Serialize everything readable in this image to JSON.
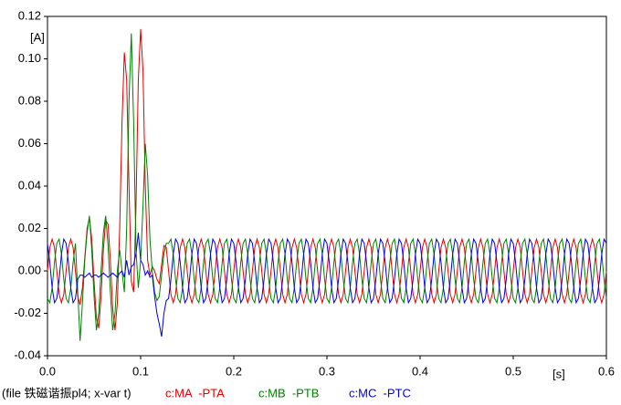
{
  "chart_data": {
    "type": "line",
    "y_unit_label": "[A]",
    "x_unit_label": "[s]",
    "file_label": "(file 铁磁谐振pl4; x-var t)",
    "xlim": [
      0,
      0.6
    ],
    "ylim": [
      -0.04,
      0.12
    ],
    "xticks": [
      {
        "value": 0,
        "label": "0.0"
      },
      {
        "value": 0.1,
        "label": "0.1"
      },
      {
        "value": 0.2,
        "label": "0.2"
      },
      {
        "value": 0.3,
        "label": "0.3"
      },
      {
        "value": 0.4,
        "label": "0.4"
      },
      {
        "value": 0.5,
        "label": "0.5"
      },
      {
        "value": 0.6,
        "label": "0.6"
      }
    ],
    "yticks": [
      {
        "value": -0.04,
        "label": "-0.04"
      },
      {
        "value": -0.02,
        "label": "-0.02"
      },
      {
        "value": 0,
        "label": "0.00"
      },
      {
        "value": 0.02,
        "label": "0.02"
      },
      {
        "value": 0.04,
        "label": "0.04"
      },
      {
        "value": 0.06,
        "label": "0.06"
      },
      {
        "value": 0.08,
        "label": "0.08"
      },
      {
        "value": 0.1,
        "label": "0.10"
      },
      {
        "value": 0.12,
        "label": "0.12"
      }
    ],
    "x": [
      0,
      0.0025,
      0.005,
      0.0075,
      0.01,
      0.0125,
      0.015,
      0.0175,
      0.02,
      0.0225,
      0.025,
      0.0275,
      0.03,
      0.0325,
      0.035,
      0.0375,
      0.04,
      0.0425,
      0.045,
      0.0475,
      0.05,
      0.0525,
      0.055,
      0.0575,
      0.06,
      0.0625,
      0.065,
      0.0675,
      0.07,
      0.0725,
      0.075,
      0.0775,
      0.08,
      0.0825,
      0.085,
      0.0875,
      0.09,
      0.0925,
      0.095,
      0.0975,
      0.1,
      0.1025,
      0.105,
      0.1075,
      0.11,
      0.1125,
      0.115,
      0.1175,
      0.12,
      0.1225,
      0.125,
      0.1275,
      0.13,
      0.1325,
      0.135,
      0.1375,
      0.14,
      0.1425,
      0.145,
      0.1475,
      0.15,
      0.1525,
      0.155,
      0.1575,
      0.16,
      0.1625,
      0.165,
      0.1675,
      0.17,
      0.1725,
      0.175,
      0.1775,
      0.18,
      0.1825,
      0.185,
      0.1875,
      0.19,
      0.1925,
      0.195,
      0.1975,
      0.2,
      0.2025,
      0.205,
      0.2075,
      0.21,
      0.2125,
      0.215,
      0.2175,
      0.22,
      0.2225,
      0.225,
      0.2275,
      0.23,
      0.2325,
      0.235,
      0.2375,
      0.24,
      0.2425,
      0.245,
      0.2475,
      0.25,
      0.2525,
      0.255,
      0.2575,
      0.26,
      0.2625,
      0.265,
      0.2675,
      0.27,
      0.2725,
      0.275,
      0.2775,
      0.28,
      0.2825,
      0.285,
      0.2875,
      0.29,
      0.2925,
      0.295,
      0.2975,
      0.3,
      0.3025,
      0.305,
      0.3075,
      0.31,
      0.3125,
      0.315,
      0.3175,
      0.32,
      0.3225,
      0.325,
      0.3275,
      0.33,
      0.3325,
      0.335,
      0.3375,
      0.34,
      0.3425,
      0.345,
      0.3475,
      0.35,
      0.3525,
      0.355,
      0.3575,
      0.36,
      0.3625,
      0.365,
      0.3675,
      0.37,
      0.3725,
      0.375,
      0.3775,
      0.38,
      0.3825,
      0.385,
      0.3875,
      0.39,
      0.3925,
      0.395,
      0.3975,
      0.4,
      0.4025,
      0.405,
      0.4075,
      0.41,
      0.4125,
      0.415,
      0.4175,
      0.42,
      0.4225,
      0.425,
      0.4275,
      0.43,
      0.4325,
      0.435,
      0.4375,
      0.44,
      0.4425,
      0.445,
      0.4475,
      0.45,
      0.4525,
      0.455,
      0.4575,
      0.46,
      0.4625,
      0.465,
      0.4675,
      0.47,
      0.4725,
      0.475,
      0.4775,
      0.48,
      0.4825,
      0.485,
      0.4875,
      0.49,
      0.4925,
      0.495,
      0.4975,
      0.5,
      0.5025,
      0.505,
      0.5075,
      0.51,
      0.5125,
      0.515,
      0.5175,
      0.52,
      0.5225,
      0.525,
      0.5275,
      0.53,
      0.5325,
      0.535,
      0.5375,
      0.54,
      0.5425,
      0.545,
      0.5475,
      0.55,
      0.5525,
      0.555,
      0.5575,
      0.56,
      0.5625,
      0.565,
      0.5675,
      0.57,
      0.5725,
      0.575,
      0.5775,
      0.58,
      0.5825,
      0.585,
      0.5875,
      0.59,
      0.5925,
      0.595,
      0.5975,
      0.6
    ],
    "series": [
      {
        "name": "c:MA  -PTA",
        "color": "#e00000",
        "values": [
          0,
          0.011,
          0.015,
          0.011,
          0,
          -0.011,
          -0.015,
          -0.011,
          0,
          0.011,
          0.015,
          0.011,
          0,
          -0.012,
          -0.016,
          -0.008,
          0.006,
          0.02,
          0.025,
          0.015,
          -0.005,
          -0.022,
          -0.027,
          -0.012,
          0.01,
          0.024,
          0.022,
          0.005,
          -0.018,
          -0.028,
          -0.015,
          0.02,
          0.07,
          0.103,
          0.09,
          0.04,
          -0.005,
          -0.01,
          0.03,
          0.09,
          0.114,
          0.095,
          0.04,
          0.005,
          -0.002,
          0.002,
          0,
          -0.004,
          -0.006,
          0.003,
          0.012,
          0.011,
          0,
          -0.011,
          -0.015,
          -0.011,
          0,
          0.011,
          0.015,
          0.011,
          0,
          -0.011,
          -0.015,
          -0.011,
          0,
          0.011,
          0.015,
          0.011,
          0,
          -0.011,
          -0.015,
          -0.011,
          0,
          0.011,
          0.015,
          0.011,
          0,
          -0.011,
          -0.015,
          -0.011,
          0,
          0.011,
          0.015,
          0.011,
          0,
          -0.011,
          -0.015,
          -0.011,
          0,
          0.011,
          0.015,
          0.011,
          0,
          -0.011,
          -0.015,
          -0.011,
          0,
          0.011,
          0.015,
          0.011,
          0,
          -0.011,
          -0.015,
          -0.011,
          0,
          0.011,
          0.015,
          0.011,
          0,
          -0.011,
          -0.015,
          -0.011,
          0,
          0.011,
          0.015,
          0.011,
          0,
          -0.011,
          -0.015,
          -0.011,
          0,
          0.011,
          0.015,
          0.011,
          0,
          -0.011,
          -0.015,
          -0.011,
          0,
          0.011,
          0.015,
          0.011,
          0,
          -0.011,
          -0.015,
          -0.011,
          0,
          0.011,
          0.015,
          0.011,
          0,
          -0.011,
          -0.015,
          -0.011,
          0,
          0.011,
          0.015,
          0.011,
          0,
          -0.011,
          -0.015,
          -0.011,
          0,
          0.011,
          0.015,
          0.011,
          0,
          -0.011,
          -0.015,
          -0.011,
          0,
          0.011,
          0.015,
          0.011,
          0,
          -0.011,
          -0.015,
          -0.011,
          0,
          0.011,
          0.015,
          0.011,
          0,
          -0.011,
          -0.015,
          -0.011,
          0,
          0.011,
          0.015,
          0.011,
          0,
          -0.011,
          -0.015,
          -0.011,
          0,
          0.011,
          0.015,
          0.011,
          0,
          -0.011,
          -0.015,
          -0.011,
          0,
          0.011,
          0.015,
          0.011,
          0,
          -0.011,
          -0.015,
          -0.011,
          0,
          0.011,
          0.015,
          0.011,
          0,
          -0.011,
          -0.015,
          -0.011,
          0,
          0.011,
          0.015,
          0.011,
          0,
          -0.011,
          -0.015,
          -0.011,
          0,
          0.011,
          0.015,
          0.011,
          0,
          -0.011,
          -0.015,
          -0.011,
          0,
          0.011,
          0.015,
          0.011,
          0,
          -0.011,
          -0.015,
          -0.011,
          0,
          0.011,
          0.015,
          0.011,
          0,
          -0.011,
          -0.015,
          -0.011,
          0
        ]
      },
      {
        "name": "c:MB  -PTB",
        "color": "#008000",
        "values": [
          -0.013,
          -0.015,
          -0.008,
          0.004,
          0.013,
          0.015,
          0.008,
          -0.004,
          -0.013,
          -0.015,
          -0.008,
          0.004,
          0.013,
          -0.01,
          -0.033,
          -0.015,
          0.005,
          0.018,
          0.026,
          0.01,
          -0.012,
          -0.028,
          -0.02,
          0,
          0.018,
          0.026,
          0.012,
          -0.01,
          -0.028,
          -0.02,
          0,
          0.01,
          0,
          -0.01,
          0.02,
          0.08,
          0.112,
          0.07,
          0.01,
          -0.008,
          0.005,
          0.03,
          0.06,
          0.045,
          0.015,
          0,
          -0.01,
          -0.014,
          -0.012,
          -0.002,
          0.008,
          0.013,
          0.013,
          0.015,
          0.008,
          -0.004,
          -0.013,
          -0.015,
          -0.008,
          0.004,
          0.013,
          0.015,
          0.008,
          -0.004,
          -0.013,
          -0.015,
          -0.008,
          0.004,
          0.013,
          0.015,
          0.008,
          -0.004,
          -0.013,
          -0.015,
          -0.008,
          0.004,
          0.013,
          0.015,
          0.008,
          -0.004,
          -0.013,
          -0.015,
          -0.008,
          0.004,
          0.013,
          0.015,
          0.008,
          -0.004,
          -0.013,
          -0.015,
          -0.008,
          0.004,
          0.013,
          0.015,
          0.008,
          -0.004,
          -0.013,
          -0.015,
          -0.008,
          0.004,
          0.013,
          0.015,
          0.008,
          -0.004,
          -0.013,
          -0.015,
          -0.008,
          0.004,
          0.013,
          0.015,
          0.008,
          -0.004,
          -0.013,
          -0.015,
          -0.008,
          0.004,
          0.013,
          0.015,
          0.008,
          -0.004,
          -0.013,
          -0.015,
          -0.008,
          0.004,
          0.013,
          0.015,
          0.008,
          -0.004,
          -0.013,
          -0.015,
          -0.008,
          0.004,
          0.013,
          0.015,
          0.008,
          -0.004,
          -0.013,
          -0.015,
          -0.008,
          0.004,
          0.013,
          0.015,
          0.008,
          -0.004,
          -0.013,
          -0.015,
          -0.008,
          0.004,
          0.013,
          0.015,
          0.008,
          -0.004,
          -0.013,
          -0.015,
          -0.008,
          0.004,
          0.013,
          0.015,
          0.008,
          -0.004,
          -0.013,
          -0.015,
          -0.008,
          0.004,
          0.013,
          0.015,
          0.008,
          -0.004,
          -0.013,
          -0.015,
          -0.008,
          0.004,
          0.013,
          0.015,
          0.008,
          -0.004,
          -0.013,
          -0.015,
          -0.008,
          0.004,
          0.013,
          0.015,
          0.008,
          -0.004,
          -0.013,
          -0.015,
          -0.008,
          0.004,
          0.013,
          0.015,
          0.008,
          -0.004,
          -0.013,
          -0.015,
          -0.008,
          0.004,
          0.013,
          0.015,
          0.008,
          -0.004,
          -0.013,
          -0.015,
          -0.008,
          0.004,
          0.013,
          0.015,
          0.008,
          -0.004,
          -0.013,
          -0.015,
          -0.008,
          0.004,
          0.013,
          0.015,
          0.008,
          -0.004,
          -0.013,
          -0.015,
          -0.008,
          0.004,
          0.013,
          0.015,
          0.008,
          -0.004,
          -0.013,
          -0.015,
          -0.008,
          0.004,
          0.013,
          0.015,
          0.008,
          -0.004,
          -0.013,
          -0.015,
          -0.008,
          0.004,
          0.013,
          0.015,
          0.008,
          -0.004,
          -0.013
        ]
      },
      {
        "name": "c:MC  -PTC",
        "color": "#0000e0",
        "values": [
          0.013,
          0.004,
          -0.008,
          -0.015,
          -0.013,
          -0.004,
          0.008,
          0.015,
          0.013,
          0.004,
          -0.008,
          -0.015,
          -0.013,
          -0.004,
          -0.002,
          -0.002,
          -0.003,
          -0.002,
          -0.001,
          -0.003,
          -0.002,
          -0.002,
          -0.003,
          -0.002,
          -0.001,
          -0.002,
          -0.003,
          -0.002,
          -0.001,
          -0.002,
          -0.003,
          -0.001,
          0,
          -0.003,
          0.005,
          -0.002,
          0.002,
          0.003,
          0.008,
          0.018,
          0.005,
          0.003,
          -0.002,
          0,
          -0.003,
          -0.002,
          -0.012,
          -0.02,
          -0.025,
          -0.031,
          -0.02,
          -0.014,
          -0.013,
          -0.004,
          0.008,
          0.015,
          0.013,
          0.004,
          -0.008,
          -0.015,
          -0.013,
          -0.004,
          0.008,
          0.015,
          0.013,
          0.004,
          -0.008,
          -0.015,
          -0.013,
          -0.004,
          0.008,
          0.015,
          0.013,
          0.004,
          -0.008,
          -0.015,
          -0.013,
          -0.004,
          0.008,
          0.015,
          0.013,
          0.004,
          -0.008,
          -0.015,
          -0.013,
          -0.004,
          0.008,
          0.015,
          0.013,
          0.004,
          -0.008,
          -0.015,
          -0.013,
          -0.004,
          0.008,
          0.015,
          0.013,
          0.004,
          -0.008,
          -0.015,
          -0.013,
          -0.004,
          0.008,
          0.015,
          0.013,
          0.004,
          -0.008,
          -0.015,
          -0.013,
          -0.004,
          0.008,
          0.015,
          0.013,
          0.004,
          -0.008,
          -0.015,
          -0.013,
          -0.004,
          0.008,
          0.015,
          0.013,
          0.004,
          -0.008,
          -0.015,
          -0.013,
          -0.004,
          0.008,
          0.015,
          0.013,
          0.004,
          -0.008,
          -0.015,
          -0.013,
          -0.004,
          0.008,
          0.015,
          0.013,
          0.004,
          -0.008,
          -0.015,
          -0.013,
          -0.004,
          0.008,
          0.015,
          0.013,
          0.004,
          -0.008,
          -0.015,
          -0.013,
          -0.004,
          0.008,
          0.015,
          0.013,
          0.004,
          -0.008,
          -0.015,
          -0.013,
          -0.004,
          0.008,
          0.015,
          0.013,
          0.004,
          -0.008,
          -0.015,
          -0.013,
          -0.004,
          0.008,
          0.015,
          0.013,
          0.004,
          -0.008,
          -0.015,
          -0.013,
          -0.004,
          0.008,
          0.015,
          0.013,
          0.004,
          -0.008,
          -0.015,
          -0.013,
          -0.004,
          0.008,
          0.015,
          0.013,
          0.004,
          -0.008,
          -0.015,
          -0.013,
          -0.004,
          0.008,
          0.015,
          0.013,
          0.004,
          -0.008,
          -0.015,
          -0.013,
          -0.004,
          0.008,
          0.015,
          0.013,
          0.004,
          -0.008,
          -0.015,
          -0.013,
          -0.004,
          0.008,
          0.015,
          0.013,
          0.004,
          -0.008,
          -0.015,
          -0.013,
          -0.004,
          0.008,
          0.015,
          0.013,
          0.004,
          -0.008,
          -0.015,
          -0.013,
          -0.004,
          0.008,
          0.015,
          0.013,
          0.004,
          -0.008,
          -0.015,
          -0.013,
          -0.004,
          0.008,
          0.015,
          0.013,
          0.004,
          -0.008,
          -0.015,
          -0.013,
          -0.004,
          0.008,
          0.015,
          0.013
        ]
      }
    ]
  }
}
